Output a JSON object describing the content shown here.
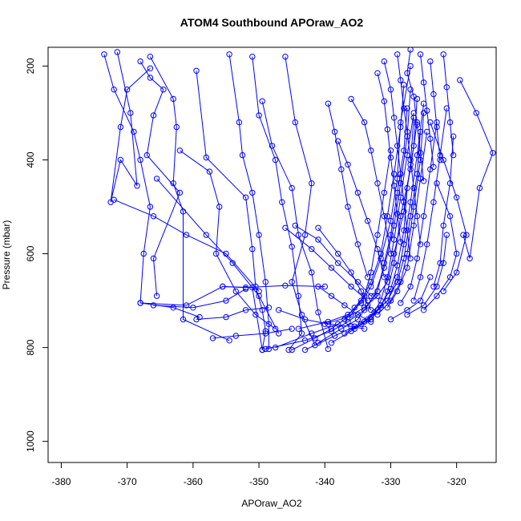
{
  "chart_data": {
    "type": "scatter",
    "title": "ATOM4 Southbound APOraw_AO2",
    "xlabel": "APOraw_AO2",
    "ylabel": "Pressure (mbar)",
    "xlim": [
      -382,
      -314
    ],
    "ylim": [
      1045,
      160
    ],
    "y_reversed": true,
    "x_ticks": [
      -380,
      -370,
      -360,
      -350,
      -340,
      -330,
      -320
    ],
    "y_ticks": [
      200,
      400,
      600,
      800,
      1000
    ],
    "grid": false,
    "legend": "none",
    "marker": "open-circle",
    "color": "#0000ff",
    "series": [
      {
        "x": [
          -371.5,
          -369.5,
          -368.5,
          -371.0,
          -372.5,
          -371.0,
          -370.0,
          -366.5
        ],
        "y": [
          170,
          300,
          455,
          400,
          490,
          330,
          250,
          205
        ]
      },
      {
        "x": [
          -368.0,
          -366.5,
          -364.5,
          -366.0,
          -367.0,
          -362.0,
          -366.0,
          -365.5
        ],
        "y": [
          190,
          225,
          250,
          305,
          390,
          470,
          610,
          690
        ]
      },
      {
        "x": [
          -373.5,
          -372.0,
          -369.0,
          -368.0,
          -366.5,
          -367.5,
          -368.0,
          -363.0,
          -359.0
        ],
        "y": [
          175,
          250,
          340,
          400,
          500,
          600,
          705,
          715,
          735
        ]
      },
      {
        "x": [
          -366.5,
          -363.0,
          -362.5,
          -363.0,
          -361.5,
          -361.5,
          -354.5
        ],
        "y": [
          180,
          270,
          330,
          450,
          510,
          740,
          785
        ]
      },
      {
        "x": [
          -359.5,
          -358.0,
          -352.0,
          -351.0,
          -350.5,
          -349.5,
          -349.0,
          -349.5
        ],
        "y": [
          210,
          395,
          480,
          590,
          670,
          720,
          765,
          805
        ]
      },
      {
        "x": [
          -354.5,
          -353.0,
          -352.5,
          -351.0,
          -350.0,
          -349.0,
          -348.5,
          -348.5
        ],
        "y": [
          175,
          320,
          390,
          470,
          560,
          660,
          750,
          803
        ]
      },
      {
        "x": [
          -351.0,
          -350.0,
          -347.5,
          -346.5,
          -345.0,
          -344.0,
          -343.5,
          -345.5
        ],
        "y": [
          180,
          305,
          400,
          490,
          585,
          690,
          770,
          805
        ]
      },
      {
        "x": [
          -349.5,
          -348.0,
          -345.0,
          -344.0,
          -342.0,
          -341.0,
          -339.5
        ],
        "y": [
          275,
          370,
          460,
          560,
          640,
          725,
          803
        ]
      },
      {
        "x": [
          -346.0,
          -344.5,
          -342.0,
          -343.0,
          -345.0,
          -343.5,
          -341.5
        ],
        "y": [
          180,
          320,
          450,
          560,
          660,
          730,
          795
        ]
      },
      {
        "x": [
          -362.0,
          -357.5,
          -356.0,
          -356.5,
          -353.5,
          -350.5,
          -347.5
        ],
        "y": [
          380,
          425,
          500,
          600,
          680,
          730,
          760
        ]
      },
      {
        "x": [
          -365.5,
          -358.0,
          -354.0,
          -350.0,
          -347.0
        ],
        "y": [
          440,
          560,
          620,
          690,
          770
        ]
      },
      {
        "x": [
          -372.0,
          -366.0,
          -361.0,
          -355.0,
          -350.0
        ],
        "y": [
          485,
          520,
          560,
          600,
          680
        ]
      },
      {
        "x": [
          -368.0,
          -361.0,
          -355.5,
          -351.0,
          -349.5
        ],
        "y": [
          705,
          710,
          670,
          672,
          805
        ]
      },
      {
        "x": [
          -366.0,
          -360.0,
          -355.0,
          -352.0
        ],
        "y": [
          710,
          715,
          700,
          675
        ]
      },
      {
        "x": [
          -359.5,
          -355.0,
          -352.0,
          -348.5
        ],
        "y": [
          740,
          735,
          720,
          715
        ]
      },
      {
        "x": [
          -357.0,
          -353.5,
          -349.0,
          -345.0
        ],
        "y": [
          780,
          775,
          770,
          760
        ]
      },
      {
        "x": [
          -355.5,
          -352.0,
          -346.0,
          -340.0
        ],
        "y": [
          670,
          672,
          668,
          670
        ]
      },
      {
        "x": [
          -345.0,
          -341.5,
          -339.0,
          -337.0,
          -335.5,
          -334.0,
          -333.0,
          -332.0,
          -331.0,
          -330.0
        ],
        "y": [
          805,
          780,
          760,
          740,
          715,
          690,
          640,
          560,
          470,
          380
        ]
      },
      {
        "x": [
          -347.5,
          -342.0,
          -338.0,
          -336.0,
          -334.5,
          -333.0,
          -331.5,
          -330.5,
          -329.5,
          -328.5,
          -328.0
        ],
        "y": [
          800,
          770,
          750,
          730,
          700,
          660,
          600,
          520,
          430,
          330,
          240
        ]
      },
      {
        "x": [
          -349.0,
          -343.0,
          -339.0,
          -336.5,
          -334.0,
          -332.5,
          -331.0,
          -329.5,
          -328.5,
          -327.5,
          -327.0
        ],
        "y": [
          803,
          785,
          765,
          745,
          720,
          690,
          630,
          540,
          450,
          350,
          250
        ]
      },
      {
        "x": [
          -344.0,
          -339.5,
          -336.5,
          -334.5,
          -333.0,
          -331.5,
          -330.0,
          -329.0,
          -328.5,
          -327.0
        ],
        "y": [
          760,
          745,
          730,
          705,
          670,
          610,
          530,
          440,
          320,
          200
        ]
      },
      {
        "x": [
          -341.0,
          -337.5,
          -335.0,
          -333.5,
          -332.0,
          -331.0,
          -330.0,
          -329.0,
          -328.0,
          -327.5
        ],
        "y": [
          790,
          760,
          740,
          710,
          680,
          620,
          560,
          470,
          380,
          290
        ]
      },
      {
        "x": [
          -343.0,
          -338.5,
          -335.5,
          -333.0,
          -331.5,
          -330.5,
          -329.5,
          -328.5,
          -327.5,
          -326.5
        ],
        "y": [
          805,
          775,
          755,
          735,
          700,
          650,
          570,
          480,
          390,
          300
        ]
      },
      {
        "x": [
          -339.0,
          -336.0,
          -333.5,
          -331.5,
          -330.5,
          -329.5,
          -328.5,
          -327.0,
          -326.0
        ],
        "y": [
          790,
          765,
          740,
          715,
          680,
          620,
          520,
          420,
          320
        ]
      },
      {
        "x": [
          -337.0,
          -334.5,
          -332.5,
          -330.5,
          -329.0,
          -328.0,
          -327.0,
          -326.0,
          -325.0
        ],
        "y": [
          770,
          750,
          725,
          700,
          650,
          580,
          490,
          390,
          280
        ]
      },
      {
        "x": [
          -340.0,
          -336.5,
          -334.0,
          -332.0,
          -330.5,
          -329.5,
          -328.0,
          -327.0,
          -326.5
        ],
        "y": [
          750,
          735,
          715,
          690,
          660,
          600,
          510,
          410,
          310
        ]
      },
      {
        "x": [
          -334.0,
          -332.0,
          -330.5,
          -329.0,
          -328.0,
          -327.0,
          -326.0,
          -325.5
        ],
        "y": [
          745,
          720,
          700,
          660,
          610,
          520,
          430,
          340
        ]
      },
      {
        "x": [
          -335.5,
          -333.0,
          -331.5,
          -330.0,
          -329.0,
          -328.0,
          -327.5,
          -326.5,
          -326.0
        ],
        "y": [
          760,
          740,
          710,
          675,
          625,
          550,
          460,
          370,
          270
        ]
      },
      {
        "x": [
          -332.0,
          -330.0,
          -328.5,
          -327.5,
          -326.5,
          -325.5,
          -325.0
        ],
        "y": [
          730,
          700,
          660,
          600,
          500,
          400,
          300
        ]
      },
      {
        "x": [
          -330.5,
          -329.0,
          -327.5,
          -326.5,
          -325.5,
          -324.5
        ],
        "y": [
          715,
          680,
          630,
          540,
          440,
          340
        ]
      },
      {
        "x": [
          -328.5,
          -327.0,
          -326.0,
          -325.0,
          -324.0,
          -323.0
        ],
        "y": [
          705,
          670,
          610,
          520,
          420,
          320
        ]
      },
      {
        "x": [
          -326.5,
          -325.5,
          -324.5,
          -323.5,
          -322.5,
          -321.5
        ],
        "y": [
          700,
          650,
          580,
          490,
          390,
          290
        ]
      },
      {
        "x": [
          -323.5,
          -322.5,
          -322.0,
          -321.0,
          -320.5
        ],
        "y": [
          670,
          620,
          540,
          450,
          350
        ]
      },
      {
        "x": [
          -319.0,
          -318.0,
          -316.5,
          -314.5,
          -317.0,
          -319.5
        ],
        "y": [
          560,
          610,
          460,
          385,
          300,
          230
        ]
      },
      {
        "x": [
          -322.0,
          -320.0,
          -318.5,
          -320.0,
          -322.0,
          -324.0
        ],
        "y": [
          680,
          640,
          560,
          480,
          400,
          320
        ]
      },
      {
        "x": [
          -325.0,
          -323.0,
          -321.0,
          -320.0,
          -321.0,
          -323.0
        ],
        "y": [
          720,
          690,
          650,
          600,
          520,
          450
        ]
      },
      {
        "x": [
          -327.5,
          -325.0,
          -323.0,
          -322.0,
          -321.5
        ],
        "y": [
          730,
          710,
          670,
          620,
          560
        ]
      },
      {
        "x": [
          -330.0,
          -327.5,
          -325.5,
          -324.0
        ],
        "y": [
          740,
          720,
          700,
          650
        ]
      },
      {
        "x": [
          -329.0,
          -328.5,
          -328.0,
          -327.5,
          -327.0,
          -326.5,
          -326.0,
          -325.5
        ],
        "y": [
          175,
          230,
          290,
          340,
          400,
          460,
          520,
          580
        ]
      },
      {
        "x": [
          -331.0,
          -330.0,
          -329.5,
          -329.0,
          -328.5,
          -328.0,
          -327.5,
          -327.0
        ],
        "y": [
          190,
          250,
          310,
          370,
          430,
          490,
          550,
          610
        ]
      },
      {
        "x": [
          -332.0,
          -331.0,
          -330.5,
          -330.0,
          -329.5,
          -329.0,
          -328.5
        ],
        "y": [
          215,
          275,
          335,
          395,
          455,
          515,
          575
        ]
      },
      {
        "x": [
          -327.0,
          -327.5,
          -326.5,
          -326.0,
          -325.5,
          -325.0
        ],
        "y": [
          165,
          215,
          265,
          325,
          385,
          445
        ]
      },
      {
        "x": [
          -325.5,
          -325.0,
          -324.5,
          -324.0,
          -323.5
        ],
        "y": [
          175,
          235,
          295,
          355,
          415
        ]
      },
      {
        "x": [
          -324.0,
          -323.5,
          -323.0,
          -322.5
        ],
        "y": [
          190,
          260,
          330,
          400
        ]
      },
      {
        "x": [
          -322.0,
          -321.5,
          -321.0,
          -320.5
        ],
        "y": [
          175,
          245,
          320,
          390
        ]
      },
      {
        "x": [
          -336.0,
          -334.0,
          -333.0,
          -332.0,
          -331.0,
          -330.0
        ],
        "y": [
          270,
          320,
          380,
          450,
          520,
          600
        ]
      },
      {
        "x": [
          -338.0,
          -336.5,
          -335.0,
          -333.5,
          -332.0,
          -331.0
        ],
        "y": [
          360,
          410,
          470,
          530,
          590,
          650
        ]
      },
      {
        "x": [
          -341.0,
          -338.0,
          -336.0,
          -334.5,
          -333.0
        ],
        "y": [
          545,
          600,
          640,
          680,
          720
        ]
      },
      {
        "x": [
          -346.0,
          -342.0,
          -339.0,
          -336.0,
          -333.5
        ],
        "y": [
          545,
          590,
          630,
          670,
          700
        ]
      },
      {
        "x": [
          -339.5,
          -338.5,
          -337.5,
          -336.5,
          -335.0,
          -333.5
        ],
        "y": [
          280,
          340,
          420,
          500,
          580,
          650
        ]
      },
      {
        "x": [
          -344.5,
          -341.0,
          -338.0,
          -335.0,
          -333.0
        ],
        "y": [
          540,
          570,
          620,
          660,
          690
        ]
      },
      {
        "x": [
          -341.0,
          -339.0,
          -337.0,
          -335.0,
          -333.0
        ],
        "y": [
          670,
          690,
          710,
          730,
          745
        ]
      },
      {
        "x": [
          -347.0,
          -343.0,
          -339.5,
          -336.0,
          -334.0
        ],
        "y": [
          720,
          740,
          750,
          755,
          760
        ]
      }
    ]
  }
}
